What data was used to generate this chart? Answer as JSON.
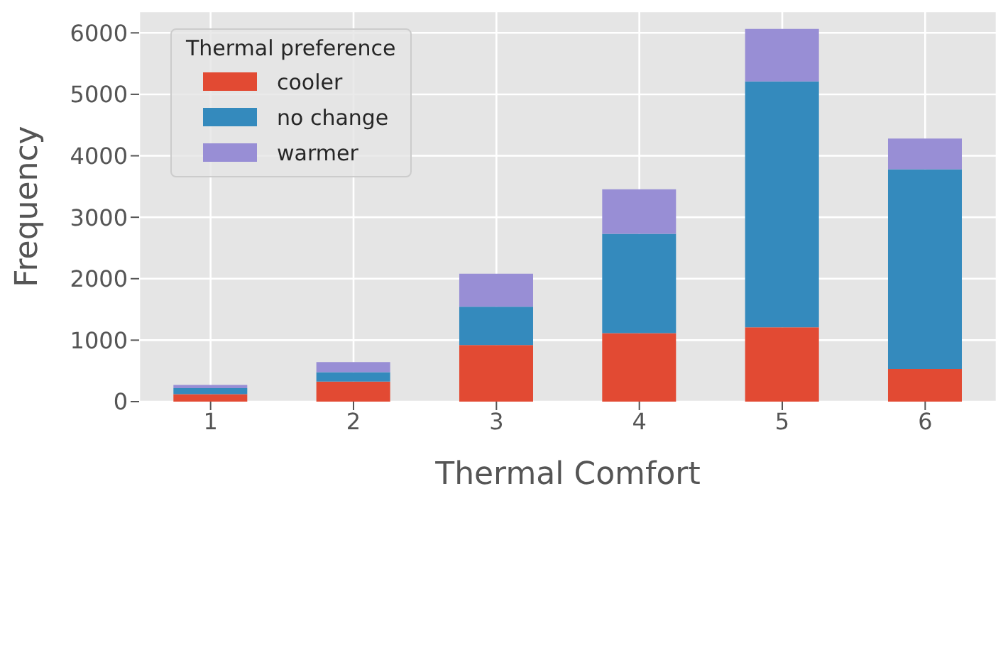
{
  "chart_data": {
    "type": "bar",
    "stacked": true,
    "xlabel": "Thermal Comfort",
    "ylabel": "Frequency",
    "legend_title": "Thermal preference",
    "categories": [
      "1",
      "2",
      "3",
      "4",
      "5",
      "6"
    ],
    "series": [
      {
        "name": "cooler",
        "color": "#e24a33",
        "values": [
          120,
          325,
          920,
          1115,
          1210,
          530
        ]
      },
      {
        "name": "no change",
        "color": "#348abd",
        "values": [
          100,
          155,
          625,
          1615,
          4000,
          3250
        ]
      },
      {
        "name": "warmer",
        "color": "#988ed5",
        "values": [
          50,
          165,
          535,
          725,
          855,
          500
        ]
      }
    ],
    "ylim": [
      0,
      6350
    ],
    "yticks": [
      0,
      1000,
      2000,
      3000,
      4000,
      5000,
      6000
    ],
    "grid": true,
    "legend": "top left"
  }
}
